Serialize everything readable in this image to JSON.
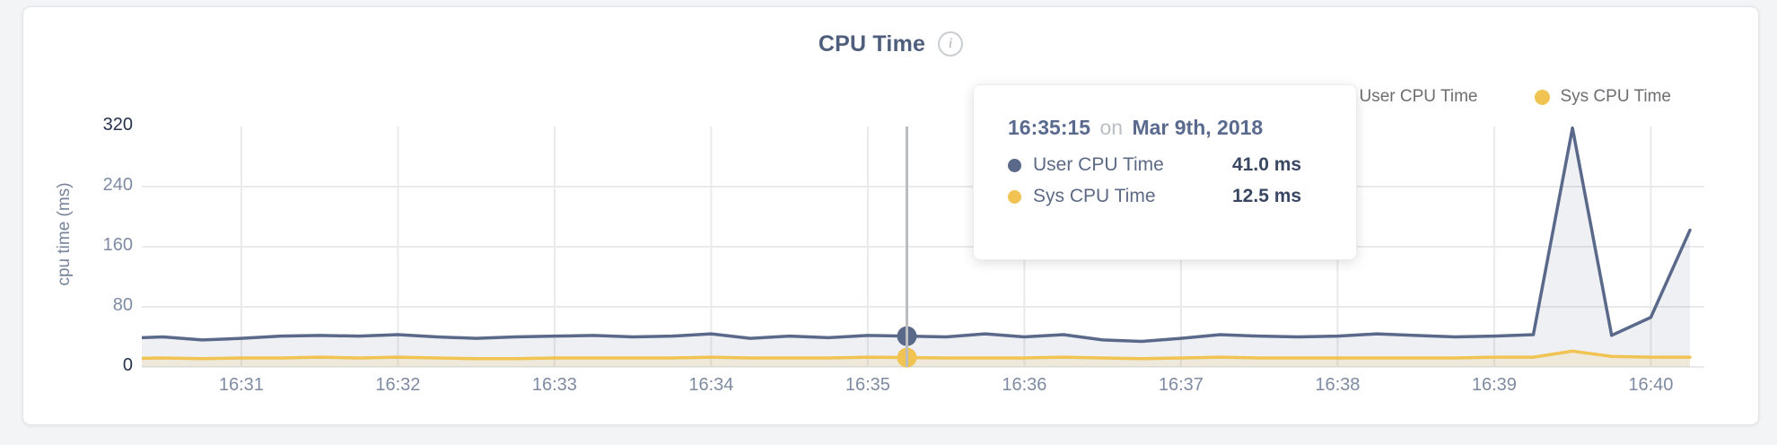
{
  "card": {
    "title": "CPU Time",
    "info_icon": "i"
  },
  "legend": [
    {
      "label": "User CPU Time",
      "color": "#5a698a"
    },
    {
      "label": "Sys CPU Time",
      "color": "#f0c352"
    }
  ],
  "tooltip": {
    "time": "16:35:15",
    "connector": "on",
    "date": "Mar 9th, 2018",
    "rows": [
      {
        "label": "User CPU Time",
        "value": "41.0 ms",
        "color": "#5a698a"
      },
      {
        "label": "Sys CPU Time",
        "value": "12.5 ms",
        "color": "#f0c352"
      }
    ]
  },
  "chart_data": {
    "type": "area",
    "title": "CPU Time",
    "xlabel": "",
    "ylabel": "cpu time (ms)",
    "ylim": [
      0,
      320
    ],
    "y_ticks": [
      0,
      80,
      160,
      240,
      320
    ],
    "x_ticks": [
      "16:31",
      "16:32",
      "16:33",
      "16:34",
      "16:35",
      "16:36",
      "16:37",
      "16:38",
      "16:39",
      "16:40"
    ],
    "grid": true,
    "legend_position": "top-right",
    "x": [
      "16:30:15",
      "16:30:30",
      "16:30:45",
      "16:31:00",
      "16:31:15",
      "16:31:30",
      "16:31:45",
      "16:32:00",
      "16:32:15",
      "16:32:30",
      "16:32:45",
      "16:33:00",
      "16:33:15",
      "16:33:30",
      "16:33:45",
      "16:34:00",
      "16:34:15",
      "16:34:30",
      "16:34:45",
      "16:35:00",
      "16:35:15",
      "16:35:30",
      "16:35:45",
      "16:36:00",
      "16:36:15",
      "16:36:30",
      "16:36:45",
      "16:37:00",
      "16:37:15",
      "16:37:30",
      "16:37:45",
      "16:38:00",
      "16:38:15",
      "16:38:30",
      "16:38:45",
      "16:39:00",
      "16:39:15",
      "16:39:30",
      "16:39:45",
      "16:40:00",
      "16:40:15"
    ],
    "series": [
      {
        "name": "User CPU Time",
        "color": "#5a698a",
        "fill": "rgba(92,107,138,0.10)",
        "values": [
          38,
          40,
          36,
          38,
          41,
          42,
          41,
          43,
          40,
          38,
          40,
          41,
          42,
          40,
          41,
          44,
          38,
          41,
          39,
          42,
          41,
          40,
          44,
          40,
          43,
          36,
          34,
          38,
          43,
          41,
          40,
          41,
          44,
          42,
          40,
          41,
          43,
          318,
          42,
          66,
          182
        ]
      },
      {
        "name": "Sys CPU Time",
        "color": "#f0c352",
        "fill": "rgba(240,195,82,0.15)",
        "values": [
          11,
          12,
          11,
          12,
          12,
          13,
          12,
          13,
          12,
          11,
          11,
          12,
          12,
          12,
          12,
          13,
          12,
          12,
          12,
          13,
          12.5,
          12,
          12,
          12,
          13,
          12,
          11,
          12,
          13,
          12,
          12,
          12,
          12,
          12,
          12,
          13,
          13,
          21,
          14,
          13,
          13
        ]
      }
    ],
    "hover": {
      "index": 20,
      "time": "16:35:15",
      "date": "Mar 9th, 2018",
      "values_ms": [
        41.0,
        12.5
      ],
      "line_color": "#bcbdbf"
    }
  }
}
